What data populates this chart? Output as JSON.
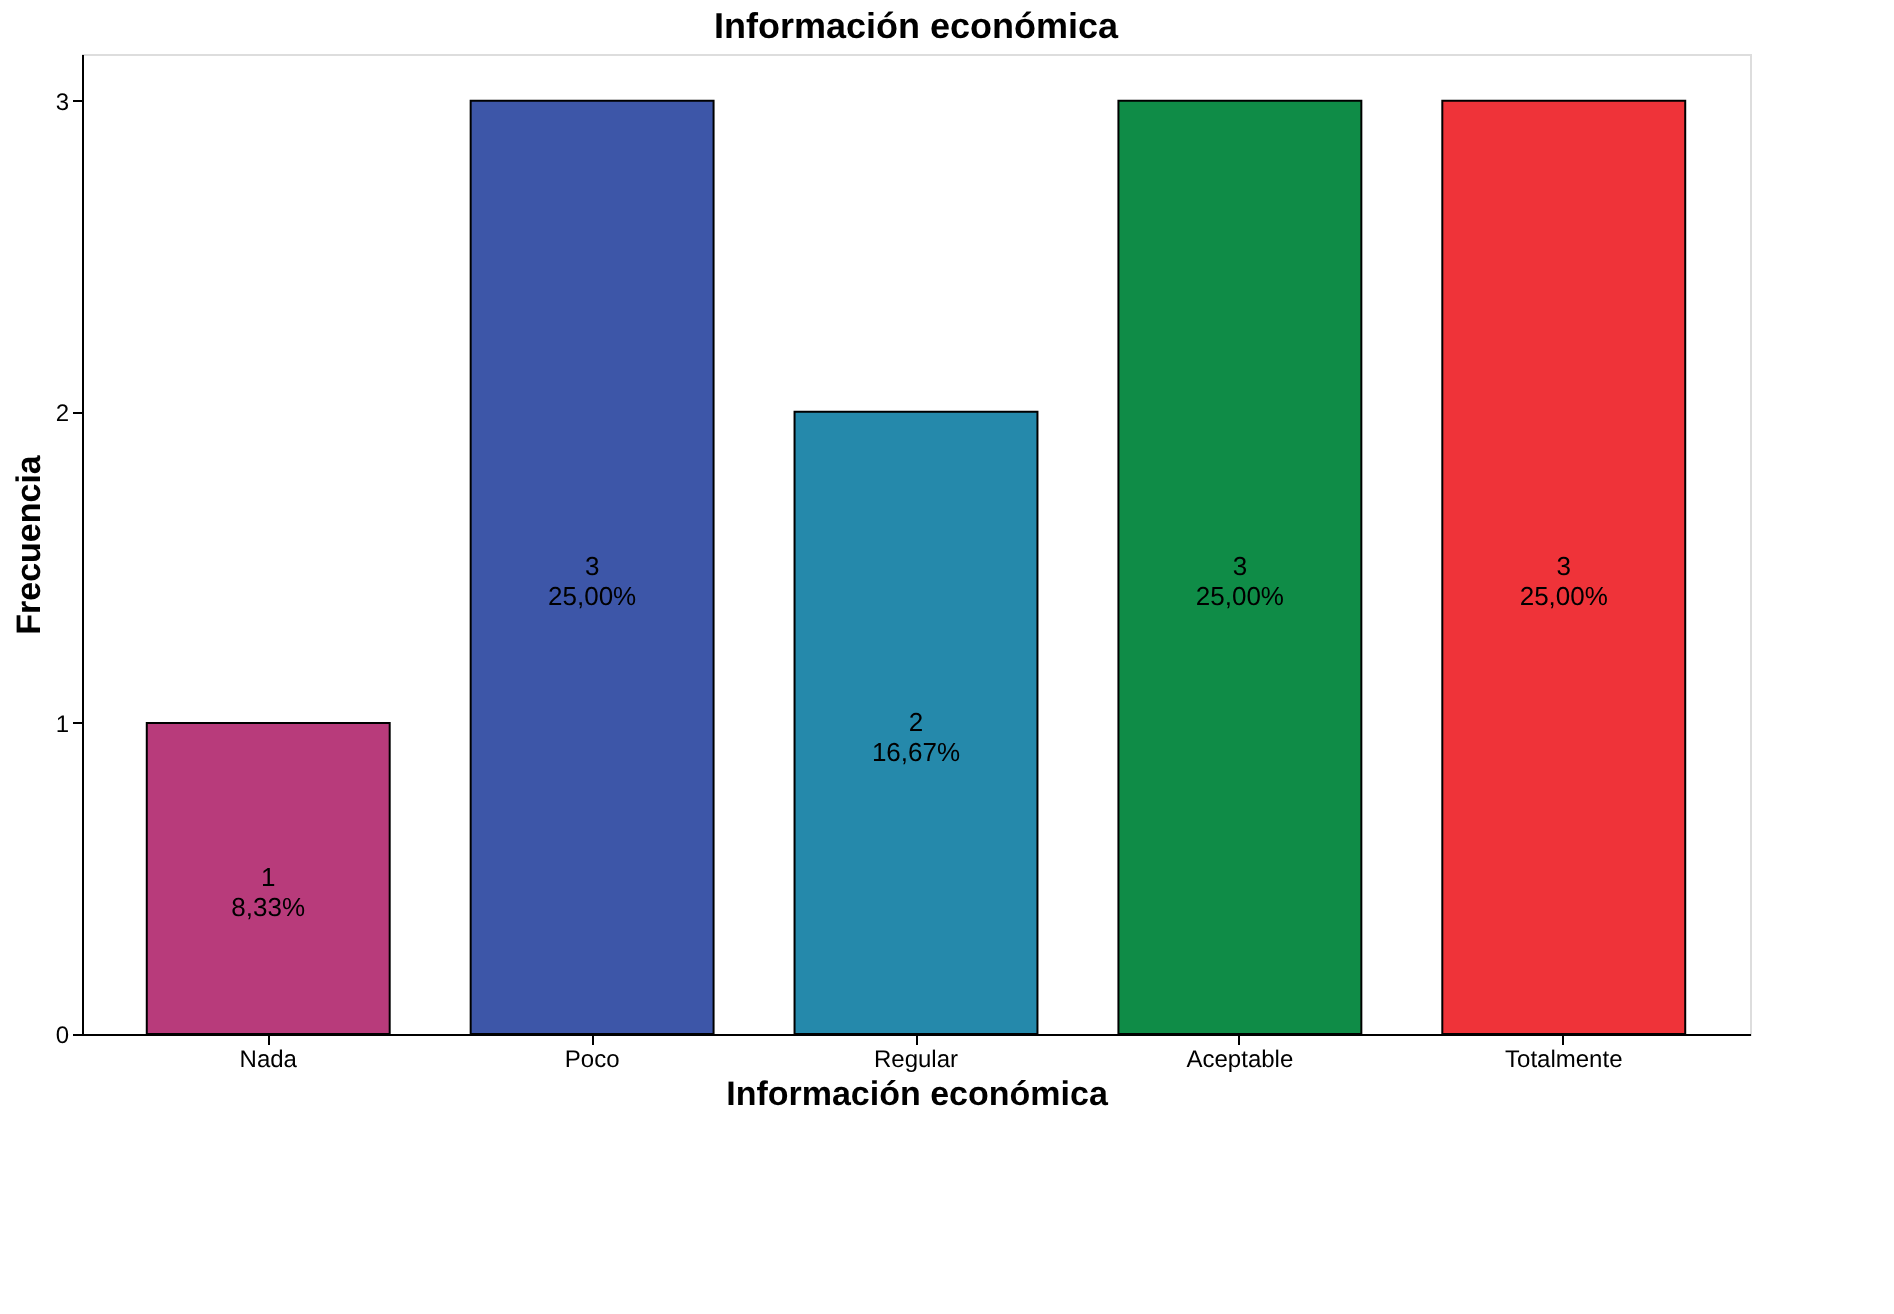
{
  "chart_data": {
    "type": "bar",
    "title": "Información económica",
    "xlabel": "Información económica",
    "ylabel": "Frecuencia",
    "categories": [
      "Nada",
      "Poco",
      "Regular",
      "Aceptable",
      "Totalmente"
    ],
    "values": [
      1,
      3,
      2,
      3,
      3
    ],
    "colors": [
      "#b83b7b",
      "#3d56a8",
      "#2589ab",
      "#0f8c47",
      "#ef3339"
    ],
    "value_labels": [
      "1\n8,33%",
      "3\n25,00%",
      "2\n16,67%",
      "3\n25,00%",
      "3\n25,00%"
    ],
    "ylim": [
      0,
      3.15
    ],
    "yticks": [
      0,
      1,
      2,
      3
    ],
    "grid": false,
    "legend": false
  }
}
